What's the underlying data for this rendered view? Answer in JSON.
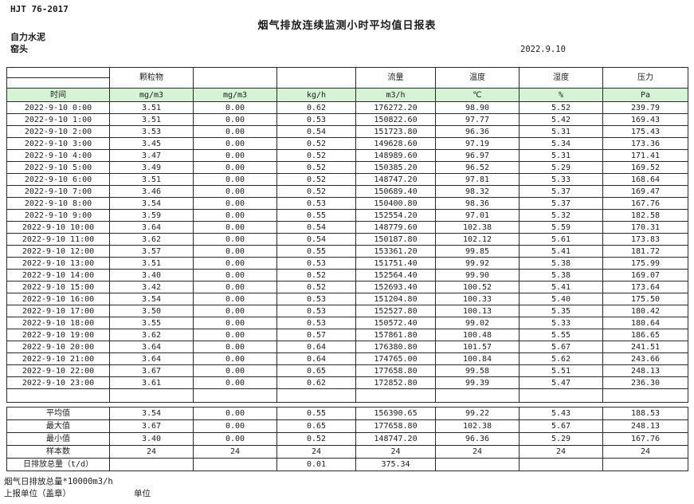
{
  "page": {
    "standard": "HJT  76-2017",
    "title": "烟气排放连续监测小时平均值日报表",
    "company": "自力水泥",
    "station": "窑头",
    "date": "2022.9.10"
  },
  "colors": {
    "header_green": "#d6f3d6"
  },
  "table": {
    "time_header": "时间",
    "group_headers": [
      "",
      "颗粒物",
      "",
      "",
      "流量",
      "温度",
      "湿度",
      "压力"
    ],
    "units": [
      "mg/m3",
      "mg/m3",
      "kg/h",
      "m3/h",
      "℃",
      "%",
      "Pa"
    ],
    "rows": [
      [
        "2022-9-10 0:00",
        "3.51",
        "0.00",
        "0.62",
        "176272.20",
        "98.90",
        "5.52",
        "239.79"
      ],
      [
        "2022-9-10 1:00",
        "3.51",
        "0.00",
        "0.53",
        "150822.60",
        "97.77",
        "5.42",
        "169.43"
      ],
      [
        "2022-9-10 2:00",
        "3.53",
        "0.00",
        "0.54",
        "151723.80",
        "96.36",
        "5.31",
        "175.43"
      ],
      [
        "2022-9-10 3:00",
        "3.45",
        "0.00",
        "0.52",
        "149628.60",
        "97.19",
        "5.34",
        "173.36"
      ],
      [
        "2022-9-10 4:00",
        "3.47",
        "0.00",
        "0.52",
        "148989.60",
        "96.97",
        "5.31",
        "171.41"
      ],
      [
        "2022-9-10 5:00",
        "3.49",
        "0.00",
        "0.52",
        "150385.20",
        "96.52",
        "5.29",
        "169.52"
      ],
      [
        "2022-9-10 6:00",
        "3.51",
        "0.00",
        "0.52",
        "148747.20",
        "97.81",
        "5.33",
        "168.64"
      ],
      [
        "2022-9-10 7:00",
        "3.46",
        "0.00",
        "0.52",
        "150689.40",
        "98.32",
        "5.37",
        "169.47"
      ],
      [
        "2022-9-10 8:00",
        "3.54",
        "0.00",
        "0.53",
        "150400.80",
        "98.36",
        "5.37",
        "167.76"
      ],
      [
        "2022-9-10 9:00",
        "3.59",
        "0.00",
        "0.55",
        "152554.20",
        "97.01",
        "5.32",
        "182.58"
      ],
      [
        "2022-9-10 10:00",
        "3.64",
        "0.00",
        "0.54",
        "148779.60",
        "102.38",
        "5.59",
        "170.31"
      ],
      [
        "2022-9-10 11:00",
        "3.62",
        "0.00",
        "0.54",
        "150187.80",
        "102.12",
        "5.61",
        "173.83"
      ],
      [
        "2022-9-10 12:00",
        "3.57",
        "0.00",
        "0.55",
        "153361.20",
        "99.85",
        "5.41",
        "181.72"
      ],
      [
        "2022-9-10 13:00",
        "3.51",
        "0.00",
        "0.53",
        "151751.40",
        "99.92",
        "5.38",
        "175.99"
      ],
      [
        "2022-9-10 14:00",
        "3.40",
        "0.00",
        "0.52",
        "152564.40",
        "99.90",
        "5.38",
        "169.07"
      ],
      [
        "2022-9-10 15:00",
        "3.42",
        "0.00",
        "0.52",
        "152693.40",
        "100.52",
        "5.41",
        "173.64"
      ],
      [
        "2022-9-10 16:00",
        "3.54",
        "0.00",
        "0.53",
        "151204.80",
        "100.33",
        "5.40",
        "175.50"
      ],
      [
        "2022-9-10 17:00",
        "3.50",
        "0.00",
        "0.53",
        "152527.80",
        "100.13",
        "5.35",
        "180.42"
      ],
      [
        "2022-9-10 18:00",
        "3.55",
        "0.00",
        "0.53",
        "150572.40",
        "99.02",
        "5.33",
        "180.64"
      ],
      [
        "2022-9-10 19:00",
        "3.62",
        "0.00",
        "0.57",
        "157861.80",
        "100.48",
        "5.55",
        "186.65"
      ],
      [
        "2022-9-10 20:00",
        "3.64",
        "0.00",
        "0.64",
        "176380.80",
        "101.57",
        "5.67",
        "241.51"
      ],
      [
        "2022-9-10 21:00",
        "3.64",
        "0.00",
        "0.64",
        "174765.00",
        "100.84",
        "5.62",
        "243.66"
      ],
      [
        "2022-9-10 22:00",
        "3.67",
        "0.00",
        "0.65",
        "177658.80",
        "99.58",
        "5.51",
        "248.13"
      ],
      [
        "2022-9-10 23:00",
        "3.61",
        "0.00",
        "0.62",
        "172852.80",
        "99.39",
        "5.47",
        "236.30"
      ]
    ],
    "summary": [
      [
        "平均值",
        "3.54",
        "0.00",
        "0.55",
        "156390.65",
        "99.22",
        "5.43",
        "188.53"
      ],
      [
        "最大值",
        "3.67",
        "0.00",
        "0.65",
        "177658.80",
        "102.38",
        "5.67",
        "248.13"
      ],
      [
        "最小值",
        "3.40",
        "0.00",
        "0.52",
        "148747.20",
        "96.36",
        "5.29",
        "167.76"
      ],
      [
        "样本数",
        "24",
        "24",
        "24",
        "24",
        "24",
        "24",
        "24"
      ],
      [
        "日排放总量（t/d）",
        "",
        "",
        "0.01",
        "375.34",
        "",
        "",
        ""
      ]
    ]
  },
  "footer": {
    "note": "烟气日排放总量*10000m3/h",
    "report_unit_label": "上报单位（盖章）",
    "unit_label": "单位"
  }
}
